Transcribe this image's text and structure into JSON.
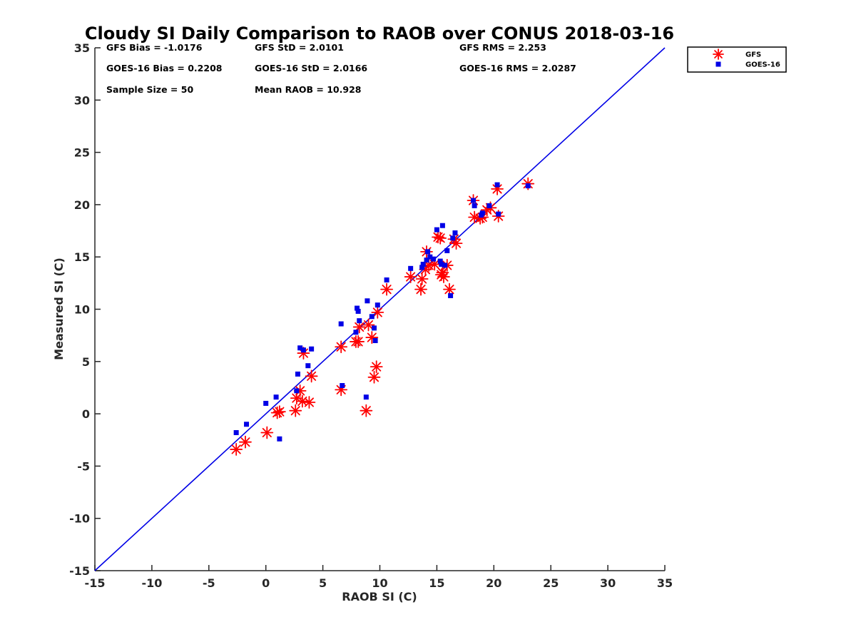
{
  "chart_data": {
    "type": "scatter",
    "title": "Cloudy SI Daily Comparison to RAOB over CONUS 2018-03-16",
    "xlabel": "RAOB SI (C)",
    "ylabel": "Measured SI (C)",
    "xlim": [
      -15,
      35
    ],
    "ylim": [
      -15,
      35
    ],
    "xticks": [
      -15,
      -10,
      -5,
      0,
      5,
      10,
      15,
      20,
      25,
      30,
      35
    ],
    "yticks": [
      -15,
      -10,
      -5,
      0,
      5,
      10,
      15,
      20,
      25,
      30,
      35
    ],
    "xtick_labels": [
      "-15",
      "-10",
      "-5",
      "0",
      "5",
      "10",
      "15",
      "20",
      "25",
      "30",
      "35"
    ],
    "ytick_labels": [
      "-15",
      "-10",
      "-5",
      "0",
      "5",
      "10",
      "15",
      "20",
      "25",
      "30",
      "35"
    ],
    "grid": false,
    "legend_position": "outside-top-right",
    "reference_line": {
      "name": "1:1",
      "x": [
        -15,
        35
      ],
      "y": [
        -15,
        35
      ],
      "color": "#0000e6"
    },
    "stats": [
      {
        "id": "gfs-bias",
        "text": "GFS Bias = -1.0176"
      },
      {
        "id": "gfs-std",
        "text": "GFS StD = 2.0101"
      },
      {
        "id": "gfs-rms",
        "text": "GFS RMS = 2.253"
      },
      {
        "id": "goes-bias",
        "text": "GOES-16 Bias = 0.2208"
      },
      {
        "id": "goes-std",
        "text": "GOES-16 StD = 2.0166"
      },
      {
        "id": "goes-rms",
        "text": "GOES-16 RMS = 2.0287"
      },
      {
        "id": "sample-size",
        "text": "Sample Size = 50"
      },
      {
        "id": "mean-raob",
        "text": "Mean RAOB = 10.928"
      }
    ],
    "series": [
      {
        "name": "GFS",
        "marker": "asterisk",
        "color": "#ff0000",
        "x": [
          -2.6,
          -1.8,
          0.1,
          1.0,
          1.2,
          2.6,
          2.7,
          3.0,
          3.2,
          3.3,
          3.8,
          4.0,
          6.6,
          6.6,
          7.9,
          8.1,
          8.2,
          8.8,
          9.0,
          9.3,
          9.5,
          9.7,
          9.8,
          10.6,
          12.7,
          13.6,
          13.7,
          14.0,
          14.1,
          14.3,
          14.8,
          15.1,
          15.3,
          15.4,
          15.5,
          15.6,
          15.9,
          16.1,
          16.5,
          16.7,
          18.2,
          18.3,
          18.8,
          19.0,
          19.4,
          19.7,
          20.3,
          20.4,
          23.0
        ],
        "y": [
          -3.4,
          -2.7,
          -1.8,
          0.1,
          0.2,
          0.3,
          1.5,
          2.2,
          1.2,
          5.8,
          1.1,
          3.6,
          6.4,
          2.3,
          6.9,
          6.9,
          8.3,
          0.3,
          8.5,
          7.3,
          3.5,
          4.5,
          9.7,
          11.9,
          13.1,
          11.9,
          12.9,
          13.8,
          15.5,
          14.2,
          14.3,
          16.9,
          16.8,
          13.3,
          13.5,
          13.1,
          14.2,
          11.9,
          16.7,
          16.3,
          20.4,
          18.8,
          18.7,
          18.8,
          19.5,
          19.7,
          21.5,
          18.9,
          22.0
        ]
      },
      {
        "name": "GOES-16",
        "marker": "square",
        "color": "#0000e6",
        "x": [
          -2.6,
          -1.7,
          0.0,
          0.9,
          1.2,
          2.7,
          2.8,
          3.0,
          3.3,
          3.7,
          4.0,
          6.6,
          6.7,
          7.9,
          8.0,
          8.1,
          8.2,
          8.8,
          8.9,
          9.3,
          9.5,
          9.6,
          9.8,
          10.6,
          12.7,
          13.7,
          13.8,
          14.1,
          14.2,
          14.4,
          14.7,
          15.0,
          15.3,
          15.4,
          15.5,
          15.7,
          15.9,
          16.2,
          16.4,
          16.6,
          18.2,
          18.3,
          18.9,
          19.0,
          19.6,
          20.3,
          20.4,
          23.0
        ],
        "y": [
          -1.8,
          -1.0,
          1.0,
          1.6,
          -2.4,
          2.2,
          3.8,
          6.3,
          6.1,
          4.6,
          6.2,
          8.6,
          2.7,
          7.8,
          10.1,
          9.8,
          8.9,
          1.6,
          10.8,
          9.3,
          8.2,
          7.0,
          10.4,
          12.8,
          13.9,
          14.0,
          14.3,
          14.7,
          15.5,
          15.0,
          14.8,
          17.6,
          14.6,
          14.3,
          18.0,
          14.2,
          15.6,
          11.3,
          16.8,
          17.3,
          20.4,
          19.9,
          19.0,
          19.2,
          19.9,
          21.9,
          19.1,
          21.8
        ]
      }
    ]
  }
}
